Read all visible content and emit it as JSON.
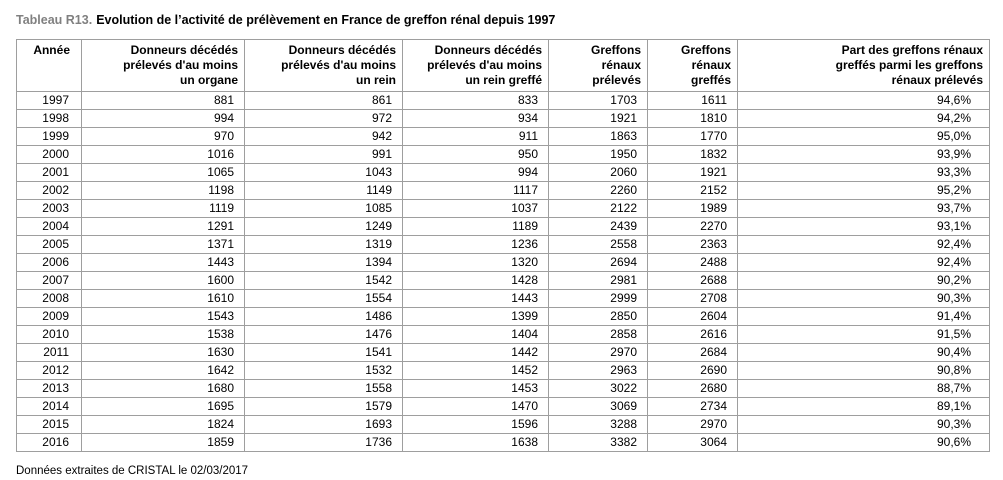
{
  "page": {
    "title_prefix": "Tableau R13.",
    "title_text": "Evolution de l’activité de prélèvement en France de greffon rénal depuis 1997",
    "footer": "Données extraites de CRISTAL le 02/03/2017"
  },
  "table": {
    "headers": [
      "Année",
      "Donneurs décédés\nprélevés d'au moins\nun organe",
      "Donneurs décédés\nprélevés d'au moins\nun rein",
      "Donneurs décédés\nprélevés d'au moins\nun rein greffé",
      "Greffons\nrénaux\nprélevés",
      "Greffons\nrénaux\ngreffés",
      "Part des greffons rénaux\ngreffés parmi les greffons\nrénaux prélevés"
    ],
    "rows": [
      [
        "1997",
        "881",
        "861",
        "833",
        "1703",
        "1611",
        "94,6%"
      ],
      [
        "1998",
        "994",
        "972",
        "934",
        "1921",
        "1810",
        "94,2%"
      ],
      [
        "1999",
        "970",
        "942",
        "911",
        "1863",
        "1770",
        "95,0%"
      ],
      [
        "2000",
        "1016",
        "991",
        "950",
        "1950",
        "1832",
        "93,9%"
      ],
      [
        "2001",
        "1065",
        "1043",
        "994",
        "2060",
        "1921",
        "93,3%"
      ],
      [
        "2002",
        "1198",
        "1149",
        "1117",
        "2260",
        "2152",
        "95,2%"
      ],
      [
        "2003",
        "1119",
        "1085",
        "1037",
        "2122",
        "1989",
        "93,7%"
      ],
      [
        "2004",
        "1291",
        "1249",
        "1189",
        "2439",
        "2270",
        "93,1%"
      ],
      [
        "2005",
        "1371",
        "1319",
        "1236",
        "2558",
        "2363",
        "92,4%"
      ],
      [
        "2006",
        "1443",
        "1394",
        "1320",
        "2694",
        "2488",
        "92,4%"
      ],
      [
        "2007",
        "1600",
        "1542",
        "1428",
        "2981",
        "2688",
        "90,2%"
      ],
      [
        "2008",
        "1610",
        "1554",
        "1443",
        "2999",
        "2708",
        "90,3%"
      ],
      [
        "2009",
        "1543",
        "1486",
        "1399",
        "2850",
        "2604",
        "91,4%"
      ],
      [
        "2010",
        "1538",
        "1476",
        "1404",
        "2858",
        "2616",
        "91,5%"
      ],
      [
        "2011",
        "1630",
        "1541",
        "1442",
        "2970",
        "2684",
        "90,4%"
      ],
      [
        "2012",
        "1642",
        "1532",
        "1452",
        "2963",
        "2690",
        "90,8%"
      ],
      [
        "2013",
        "1680",
        "1558",
        "1453",
        "3022",
        "2680",
        "88,7%"
      ],
      [
        "2014",
        "1695",
        "1579",
        "1470",
        "3069",
        "2734",
        "89,1%"
      ],
      [
        "2015",
        "1824",
        "1693",
        "1596",
        "3288",
        "2970",
        "90,3%"
      ],
      [
        "2016",
        "1859",
        "1736",
        "1638",
        "3382",
        "3064",
        "90,6%"
      ]
    ]
  },
  "colors": {
    "title_prefix": "#808080",
    "grid_inner": "#9e9e9e",
    "grid_outer": "#8c8c8c",
    "text": "#000000"
  }
}
